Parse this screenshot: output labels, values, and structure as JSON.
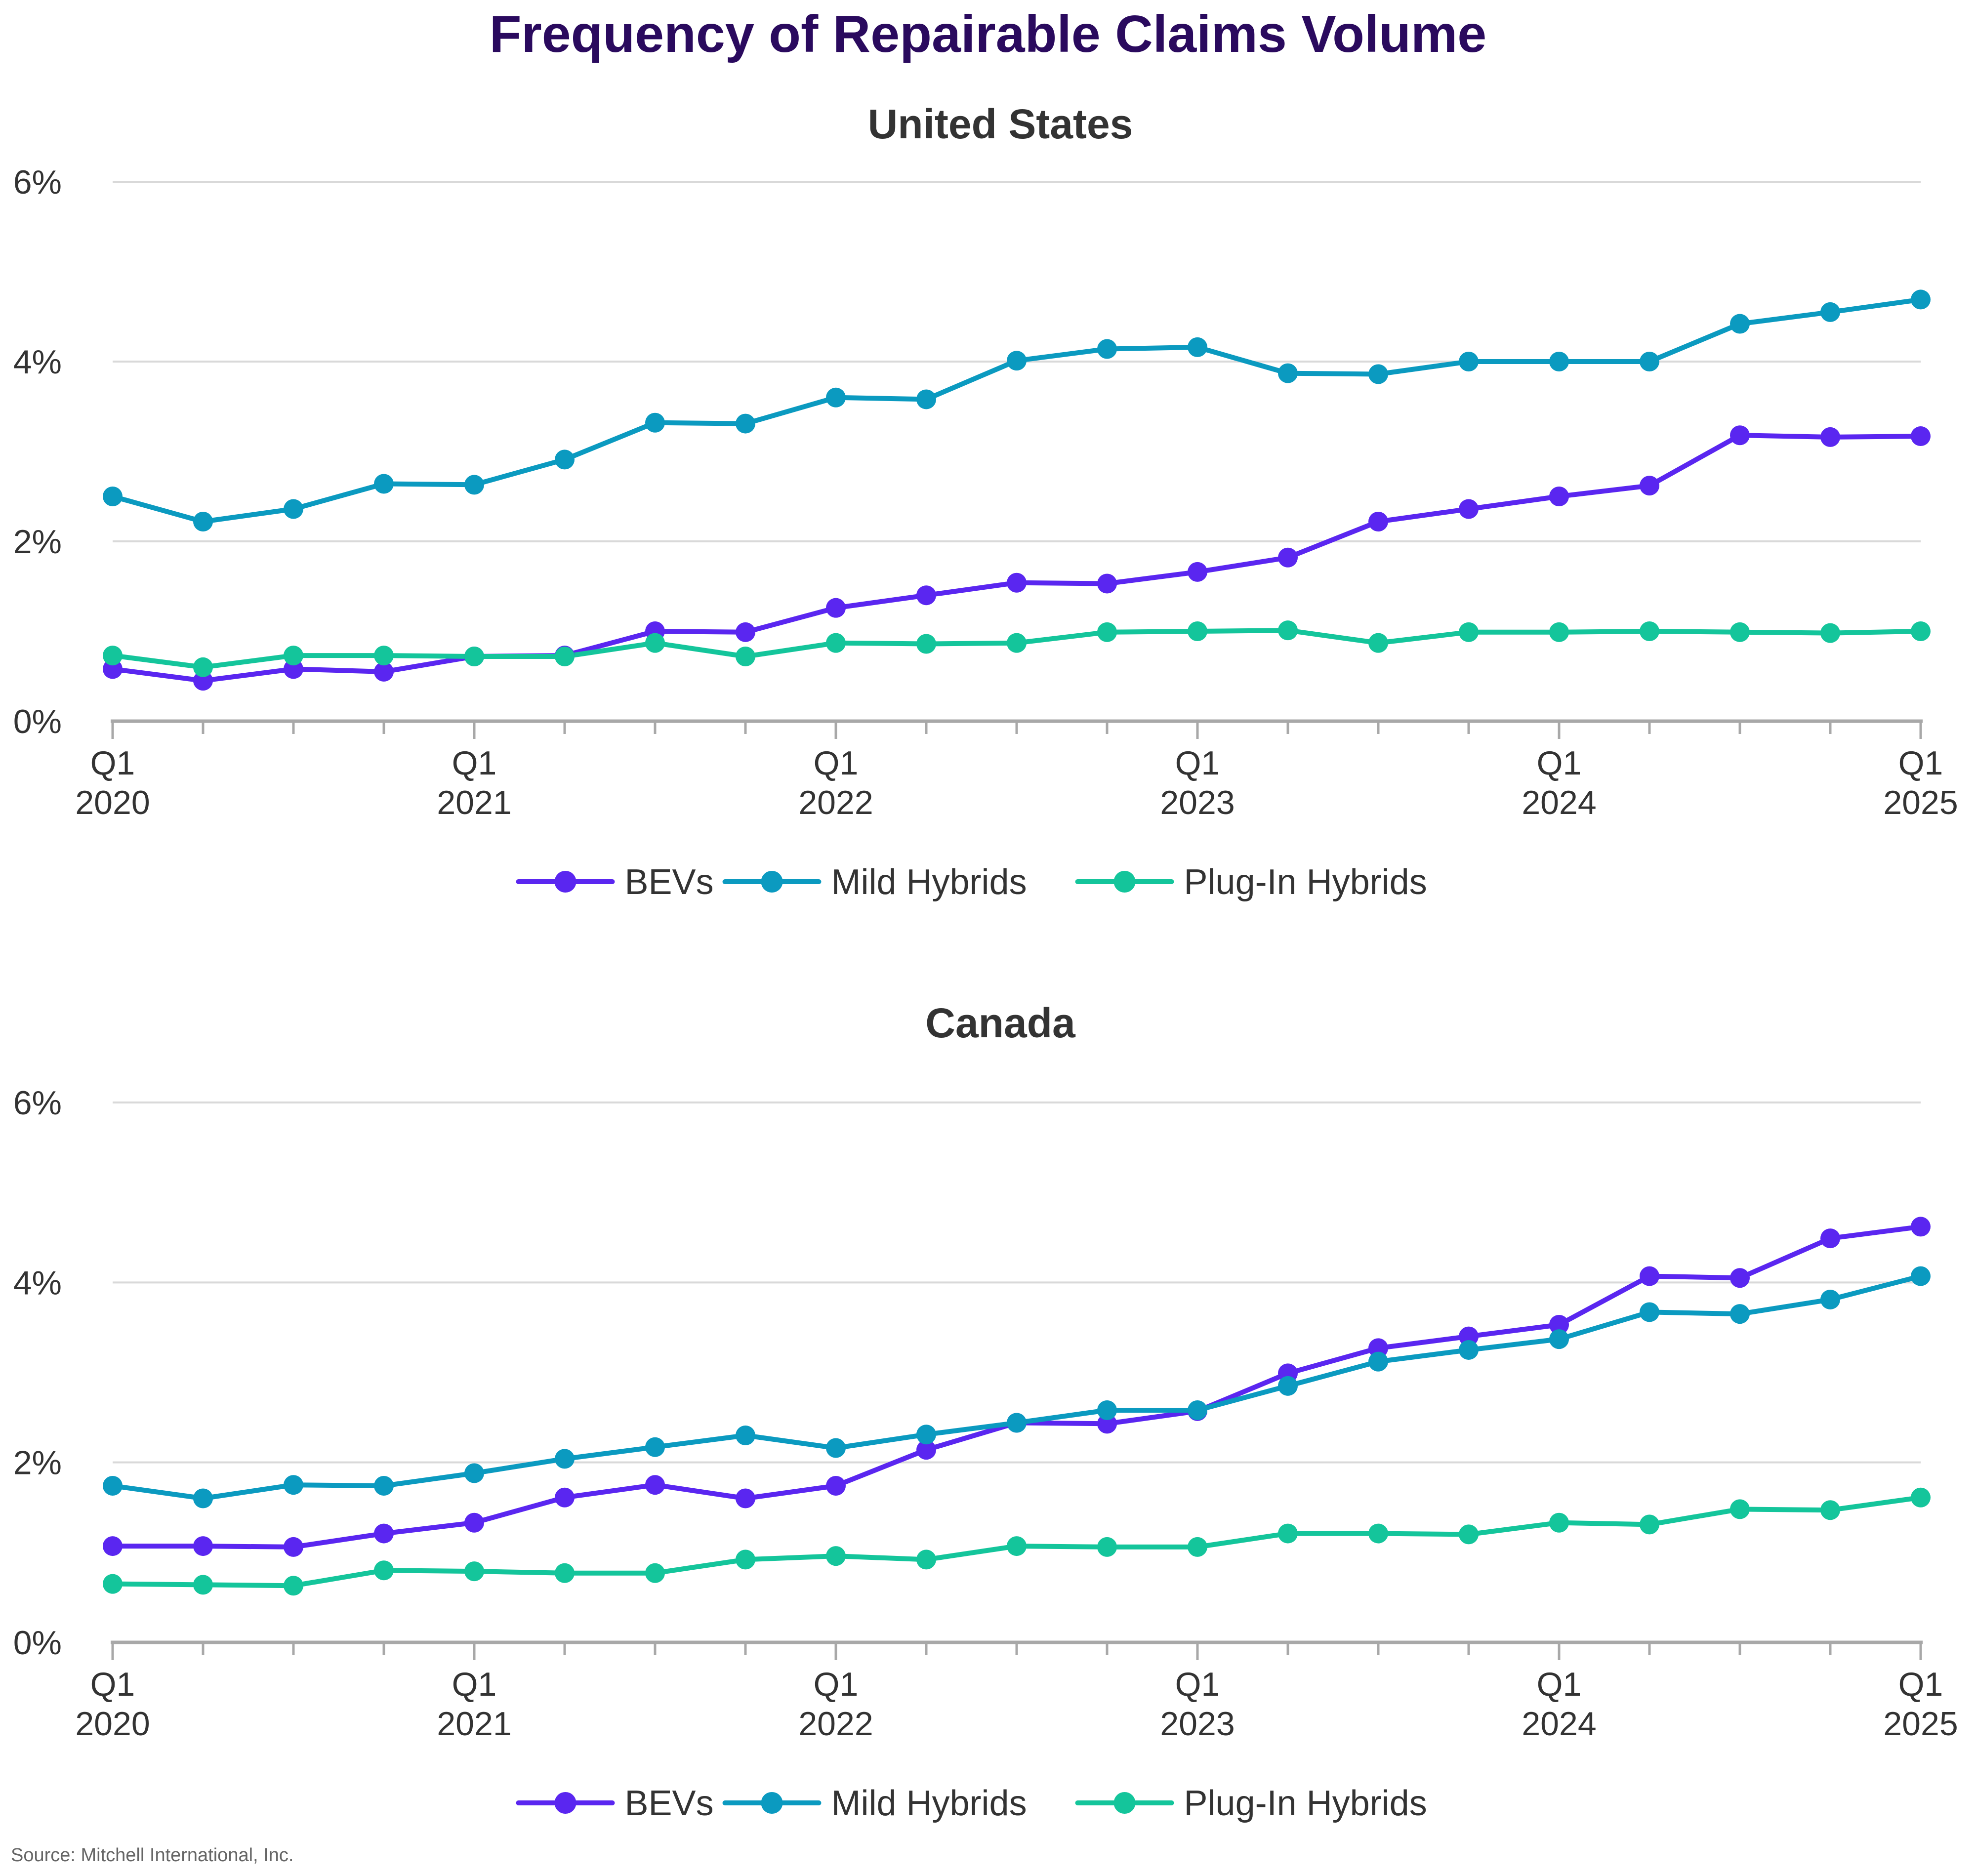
{
  "title": "Frequency of Repairable Claims Volume",
  "source": "Source: Mitchell International, Inc.",
  "colors": {
    "BEVs": "#5a26f0",
    "Mild Hybrids": "#0b9ac0",
    "Plug-In Hybrids": "#14c59b"
  },
  "chart_data": [
    {
      "type": "line",
      "title": "United States",
      "ylim": [
        0,
        6
      ],
      "yticks": [
        "0%",
        "2%",
        "4%",
        "6%"
      ],
      "x_tick_labels": [
        [
          "Q1",
          "2020"
        ],
        [
          "Q1",
          "2021"
        ],
        [
          "Q1",
          "2022"
        ],
        [
          "Q1",
          "2023"
        ],
        [
          "Q1",
          "2024"
        ],
        [
          "Q1",
          "2025"
        ]
      ],
      "categories": [
        "Q1 2020",
        "Q2 2020",
        "Q3 2020",
        "Q4 2020",
        "Q1 2021",
        "Q2 2021",
        "Q3 2021",
        "Q4 2021",
        "Q1 2022",
        "Q2 2022",
        "Q3 2022",
        "Q4 2022",
        "Q1 2023",
        "Q2 2023",
        "Q3 2023",
        "Q4 2023",
        "Q1 2024",
        "Q2 2024",
        "Q3 2024",
        "Q4 2024",
        "Q1 2025"
      ],
      "legend": [
        "BEVs",
        "Mild Hybrids",
        "Plug-In Hybrids"
      ],
      "series": [
        {
          "name": "BEVs",
          "values": [
            0.58,
            0.45,
            0.58,
            0.55,
            0.72,
            0.73,
            1.0,
            0.99,
            1.26,
            1.4,
            1.54,
            1.53,
            1.66,
            1.82,
            2.22,
            2.36,
            2.5,
            2.62,
            3.18,
            3.16,
            3.17
          ]
        },
        {
          "name": "Mild Hybrids",
          "values": [
            2.5,
            2.22,
            2.36,
            2.64,
            2.63,
            2.91,
            3.32,
            3.31,
            3.6,
            3.58,
            4.01,
            4.14,
            4.16,
            3.87,
            3.86,
            4.0,
            4.0,
            4.0,
            4.42,
            4.55,
            4.69
          ]
        },
        {
          "name": "Plug-In Hybrids",
          "values": [
            0.73,
            0.6,
            0.73,
            0.73,
            0.72,
            0.72,
            0.87,
            0.72,
            0.87,
            0.86,
            0.87,
            0.99,
            1.0,
            1.01,
            0.87,
            0.99,
            0.99,
            1.0,
            0.99,
            0.98,
            1.0
          ]
        }
      ]
    },
    {
      "type": "line",
      "title": "Canada",
      "ylim": [
        0,
        6
      ],
      "yticks": [
        "0%",
        "2%",
        "4%",
        "6%"
      ],
      "x_tick_labels": [
        [
          "Q1",
          "2020"
        ],
        [
          "Q1",
          "2021"
        ],
        [
          "Q1",
          "2022"
        ],
        [
          "Q1",
          "2023"
        ],
        [
          "Q1",
          "2024"
        ],
        [
          "Q1",
          "2025"
        ]
      ],
      "categories": [
        "Q1 2020",
        "Q2 2020",
        "Q3 2020",
        "Q4 2020",
        "Q1 2021",
        "Q2 2021",
        "Q3 2021",
        "Q4 2021",
        "Q1 2022",
        "Q2 2022",
        "Q3 2022",
        "Q4 2022",
        "Q1 2023",
        "Q2 2023",
        "Q3 2023",
        "Q4 2023",
        "Q1 2024",
        "Q2 2024",
        "Q3 2024",
        "Q4 2024",
        "Q1 2025"
      ],
      "legend": [
        "BEVs",
        "Mild Hybrids",
        "Plug-In Hybrids"
      ],
      "series": [
        {
          "name": "BEVs",
          "values": [
            1.07,
            1.07,
            1.06,
            1.21,
            1.33,
            1.61,
            1.75,
            1.6,
            1.74,
            2.14,
            2.44,
            2.43,
            2.57,
            2.99,
            3.27,
            3.4,
            3.53,
            4.07,
            4.05,
            4.49,
            4.62
          ]
        },
        {
          "name": "Mild Hybrids",
          "values": [
            1.74,
            1.6,
            1.75,
            1.74,
            1.88,
            2.04,
            2.17,
            2.3,
            2.16,
            2.31,
            2.44,
            2.58,
            2.58,
            2.85,
            3.12,
            3.25,
            3.37,
            3.67,
            3.65,
            3.81,
            4.07
          ]
        },
        {
          "name": "Plug-In Hybrids",
          "values": [
            0.65,
            0.64,
            0.63,
            0.8,
            0.79,
            0.77,
            0.77,
            0.92,
            0.96,
            0.92,
            1.07,
            1.06,
            1.06,
            1.21,
            1.21,
            1.2,
            1.33,
            1.31,
            1.48,
            1.47,
            1.61
          ]
        }
      ]
    }
  ]
}
